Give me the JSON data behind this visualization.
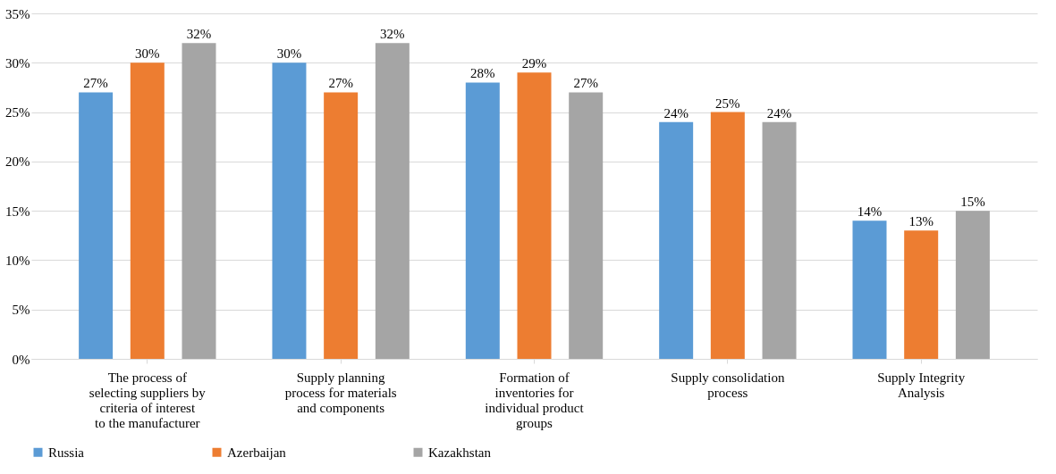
{
  "chart_data": {
    "type": "bar",
    "categories": [
      "The process of selecting suppliers by criteria of interest to the manufacturer",
      "Supply planning process for materials and components",
      "Formation of inventories for individual product groups",
      "Supply consolidation process",
      "Supply Integrity Analysis"
    ],
    "series": [
      {
        "name": "Russia",
        "color": "#5b9bd5",
        "values": [
          27,
          30,
          28,
          24,
          14
        ],
        "value_labels": [
          "27%",
          "30%",
          "28%",
          "24%",
          "14%"
        ]
      },
      {
        "name": "Azerbaijan",
        "color": "#ed7d31",
        "values": [
          30,
          27,
          29,
          25,
          13
        ],
        "value_labels": [
          "30%",
          "27%",
          "29%",
          "25%",
          "13%"
        ]
      },
      {
        "name": "Kazakhstan",
        "color": "#a5a5a5",
        "values": [
          32,
          32,
          27,
          24,
          15
        ],
        "value_labels": [
          "32%",
          "32%",
          "27%",
          "24%",
          "15%"
        ]
      }
    ],
    "ylim": [
      0,
      35
    ],
    "yticks": [
      {
        "value": 0,
        "label": "0%"
      },
      {
        "value": 5,
        "label": "5%"
      },
      {
        "value": 10,
        "label": "10%"
      },
      {
        "value": 15,
        "label": "15%"
      },
      {
        "value": 20,
        "label": "20%"
      },
      {
        "value": 25,
        "label": "25%"
      },
      {
        "value": 30,
        "label": "30%"
      },
      {
        "value": 35,
        "label": "35%"
      }
    ],
    "grid": "y",
    "legend": "bottom"
  }
}
